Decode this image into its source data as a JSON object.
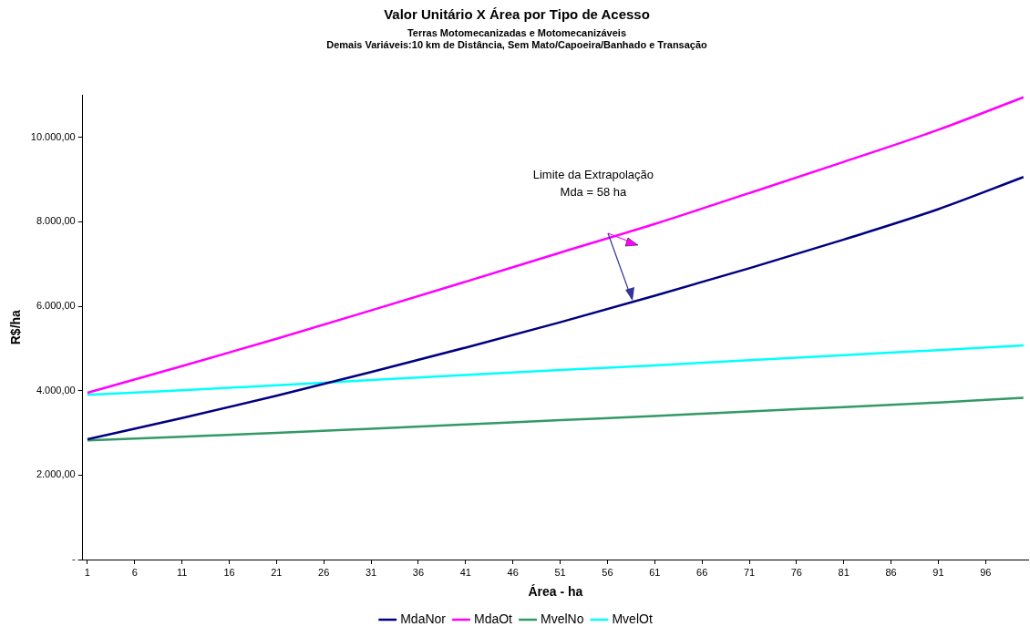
{
  "chart_data": {
    "type": "line",
    "title": "Valor Unitário X Área por Tipo de Acesso",
    "subtitle": "Terras Motomecanizadas e Motomecanizáveis",
    "xlabel": "Área - ha",
    "ylabel": "R$/ha",
    "annotations": [
      "Demais Variáveis:10 km de Distância, Sem Mato/Capoeira/Banhado e Transação",
      "Limite da Extrapolação\nMda = 58 ha"
    ],
    "x": [
      1,
      11,
      21,
      31,
      41,
      51,
      61,
      71,
      81,
      91,
      100
    ],
    "series": [
      {
        "name": "MdaNor",
        "color": "#000080",
        "values": [
          2850,
          3350,
          3880,
          4440,
          5020,
          5620,
          6250,
          6900,
          7580,
          8300,
          9060
        ]
      },
      {
        "name": "MdaOt",
        "color": "#ff00ff",
        "values": [
          3950,
          4580,
          5230,
          5900,
          6580,
          7270,
          7950,
          8680,
          9420,
          10180,
          10950
        ]
      },
      {
        "name": "MvelNo",
        "color": "#339966",
        "values": [
          2820,
          2910,
          3000,
          3100,
          3200,
          3300,
          3400,
          3510,
          3610,
          3720,
          3830
        ]
      },
      {
        "name": "MvelOt",
        "color": "#00ffff",
        "values": [
          3900,
          4010,
          4130,
          4250,
          4370,
          4490,
          4600,
          4720,
          4840,
          4960,
          5070
        ]
      }
    ],
    "xlim": [
      0.5,
      100.5
    ],
    "xticks": [
      1,
      6,
      11,
      16,
      21,
      26,
      31,
      36,
      41,
      46,
      51,
      56,
      61,
      66,
      71,
      76,
      81,
      86,
      91,
      96
    ],
    "ylim": [
      0,
      11000
    ],
    "yticks": [
      {
        "value": 0,
        "label": "-"
      },
      {
        "value": 2000,
        "label": "2.000,00"
      },
      {
        "value": 4000,
        "label": "4.000,00"
      },
      {
        "value": 6000,
        "label": "6.000,00"
      },
      {
        "value": 8000,
        "label": "8.000,00"
      },
      {
        "value": 10000,
        "label": "10.000,00"
      }
    ],
    "grid": false,
    "legend": "bottom",
    "marker": "none",
    "line_style": "solid"
  }
}
